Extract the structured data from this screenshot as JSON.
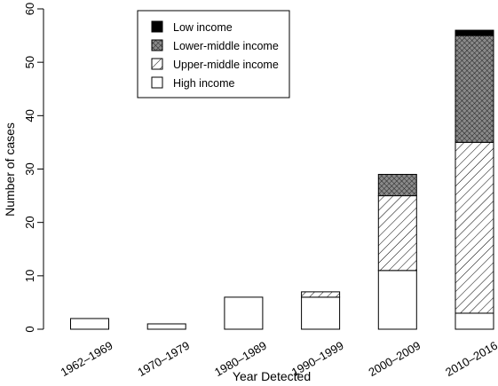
{
  "chart_data": {
    "type": "bar",
    "stacked": true,
    "categories": [
      "1962–1969",
      "1970–1979",
      "1980–1989",
      "1990–1999",
      "2000–2009",
      "2010–2016"
    ],
    "series": [
      {
        "name": "High income",
        "pattern": "solid",
        "color": "#ffffff",
        "values": [
          2,
          1,
          6,
          6,
          11,
          3
        ]
      },
      {
        "name": "Upper-middle income",
        "pattern": "diagonal-hatch",
        "color": "#000000",
        "values": [
          0,
          0,
          0,
          1,
          14,
          32
        ]
      },
      {
        "name": "Lower-middle income",
        "pattern": "cross-hatch",
        "color": "#555555",
        "values": [
          0,
          0,
          0,
          0,
          4,
          20
        ]
      },
      {
        "name": "Low income",
        "pattern": "solid",
        "color": "#000000",
        "values": [
          0,
          0,
          0,
          0,
          0,
          1
        ]
      }
    ],
    "legend": {
      "position": "top-center",
      "order": [
        "Low income",
        "Lower-middle income",
        "Upper-middle income",
        "High income"
      ]
    },
    "xlabel": "Year Detected",
    "ylabel": "Number of cases",
    "ylim": [
      0,
      60
    ],
    "yticks": [
      0,
      10,
      20,
      30,
      40,
      50,
      60
    ],
    "grid": false
  }
}
